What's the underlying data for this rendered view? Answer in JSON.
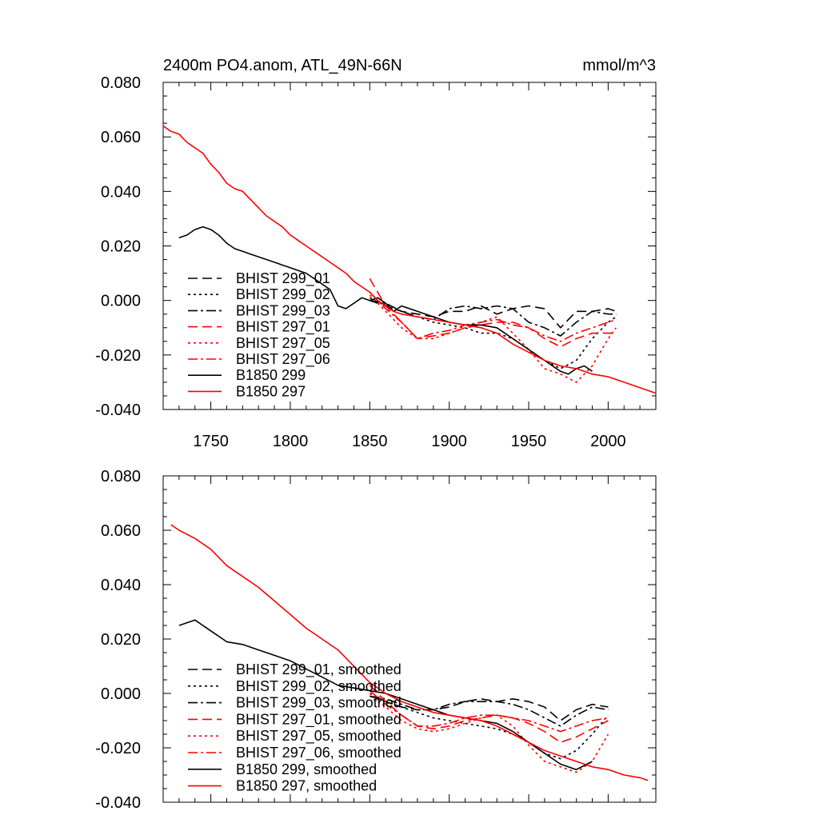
{
  "chart_data": [
    {
      "type": "line",
      "title": "2400m PO4.anom, ATL_49N-66N",
      "units": "mmol/m^3",
      "xlim": [
        1720,
        2030
      ],
      "ylim": [
        -0.04,
        0.08
      ],
      "yticks": [
        "0.080",
        "0.060",
        "0.040",
        "0.020",
        "0.000",
        "-0.020",
        "-0.040"
      ],
      "xticks": [
        "1750",
        "1800",
        "1850",
        "1900",
        "1950",
        "2000"
      ],
      "legend_position": "lower-left",
      "series": [
        {
          "name": "BHIST 299_01",
          "color": "#000000",
          "dash": "dash",
          "x": [
            1850,
            1860,
            1870,
            1880,
            1890,
            1900,
            1910,
            1920,
            1930,
            1940,
            1950,
            1960,
            1970,
            1980,
            1990,
            2000,
            2005
          ],
          "y": [
            0.0,
            -0.002,
            -0.004,
            -0.005,
            -0.006,
            -0.004,
            -0.004,
            -0.002,
            -0.005,
            -0.003,
            -0.002,
            -0.003,
            -0.01,
            -0.004,
            -0.004,
            -0.003,
            -0.004
          ]
        },
        {
          "name": "BHIST 299_02",
          "color": "#000000",
          "dash": "dot",
          "x": [
            1850,
            1860,
            1870,
            1880,
            1890,
            1900,
            1910,
            1920,
            1930,
            1940,
            1950,
            1960,
            1970,
            1980,
            1990,
            2000,
            2005
          ],
          "y": [
            0.001,
            -0.002,
            -0.004,
            -0.006,
            -0.008,
            -0.009,
            -0.01,
            -0.012,
            -0.012,
            -0.014,
            -0.018,
            -0.022,
            -0.025,
            -0.022,
            -0.014,
            -0.008,
            -0.006
          ]
        },
        {
          "name": "BHIST 299_03",
          "color": "#000000",
          "dash": "dashdot",
          "x": [
            1850,
            1860,
            1870,
            1880,
            1890,
            1900,
            1910,
            1920,
            1930,
            1940,
            1950,
            1960,
            1970,
            1980,
            1990,
            2000,
            2005
          ],
          "y": [
            0.0,
            -0.001,
            -0.004,
            -0.006,
            -0.007,
            -0.003,
            -0.002,
            -0.003,
            -0.002,
            -0.003,
            -0.008,
            -0.01,
            -0.013,
            -0.008,
            -0.004,
            -0.005,
            -0.005
          ]
        },
        {
          "name": "BHIST 297_01",
          "color": "#ff0000",
          "dash": "dash",
          "x": [
            1850,
            1860,
            1870,
            1880,
            1890,
            1900,
            1910,
            1920,
            1930,
            1940,
            1950,
            1960,
            1970,
            1980,
            1990,
            2000,
            2005
          ],
          "y": [
            0.008,
            -0.002,
            -0.008,
            -0.014,
            -0.013,
            -0.012,
            -0.01,
            -0.009,
            -0.008,
            -0.008,
            -0.01,
            -0.014,
            -0.017,
            -0.014,
            -0.012,
            -0.012,
            -0.012
          ]
        },
        {
          "name": "BHIST 297_05",
          "color": "#ff0000",
          "dash": "dot",
          "x": [
            1850,
            1860,
            1870,
            1880,
            1890,
            1900,
            1910,
            1920,
            1930,
            1940,
            1950,
            1960,
            1970,
            1980,
            1990,
            2000,
            2005
          ],
          "y": [
            0.002,
            -0.004,
            -0.01,
            -0.014,
            -0.014,
            -0.012,
            -0.01,
            -0.008,
            -0.006,
            -0.012,
            -0.018,
            -0.025,
            -0.027,
            -0.03,
            -0.024,
            -0.014,
            -0.01
          ]
        },
        {
          "name": "BHIST 297_06",
          "color": "#ff0000",
          "dash": "dashdot",
          "x": [
            1850,
            1860,
            1870,
            1880,
            1890,
            1900,
            1910,
            1920,
            1930,
            1940,
            1950,
            1960,
            1970,
            1980,
            1990,
            2000,
            2005
          ],
          "y": [
            0.003,
            -0.003,
            -0.008,
            -0.014,
            -0.012,
            -0.011,
            -0.009,
            -0.008,
            -0.007,
            -0.009,
            -0.01,
            -0.013,
            -0.015,
            -0.012,
            -0.01,
            -0.008,
            -0.007
          ]
        },
        {
          "name": "B1850 299",
          "color": "#000000",
          "dash": "solid",
          "x": [
            1730,
            1735,
            1740,
            1745,
            1750,
            1755,
            1760,
            1765,
            1770,
            1775,
            1780,
            1785,
            1790,
            1795,
            1800,
            1805,
            1810,
            1815,
            1820,
            1825,
            1830,
            1835,
            1840,
            1845,
            1850,
            1855,
            1860,
            1865,
            1870,
            1880,
            1890,
            1900,
            1910,
            1920,
            1930,
            1940,
            1950,
            1960,
            1970,
            1975,
            1980,
            1985,
            1990
          ],
          "y": [
            0.023,
            0.024,
            0.026,
            0.027,
            0.026,
            0.024,
            0.021,
            0.019,
            0.018,
            0.017,
            0.016,
            0.015,
            0.014,
            0.013,
            0.012,
            0.011,
            0.01,
            0.008,
            0.006,
            0.004,
            -0.002,
            -0.003,
            -0.001,
            0.001,
            0.0,
            0.001,
            -0.001,
            -0.004,
            -0.002,
            -0.004,
            -0.006,
            -0.008,
            -0.009,
            -0.009,
            -0.01,
            -0.014,
            -0.018,
            -0.022,
            -0.026,
            -0.027,
            -0.025,
            -0.024,
            -0.026
          ]
        },
        {
          "name": "B1850 297",
          "color": "#ff0000",
          "dash": "solid",
          "x": [
            1720,
            1725,
            1730,
            1735,
            1740,
            1745,
            1750,
            1755,
            1760,
            1765,
            1770,
            1775,
            1780,
            1785,
            1790,
            1795,
            1800,
            1805,
            1810,
            1815,
            1820,
            1825,
            1830,
            1835,
            1840,
            1845,
            1850,
            1855,
            1860,
            1865,
            1870,
            1880,
            1890,
            1900,
            1910,
            1920,
            1930,
            1940,
            1950,
            1960,
            1970,
            1980,
            1990,
            2000,
            2010,
            2020,
            2030
          ],
          "y": [
            0.064,
            0.062,
            0.061,
            0.058,
            0.056,
            0.054,
            0.05,
            0.047,
            0.043,
            0.041,
            0.04,
            0.037,
            0.034,
            0.031,
            0.029,
            0.027,
            0.024,
            0.022,
            0.02,
            0.018,
            0.016,
            0.014,
            0.012,
            0.01,
            0.007,
            0.005,
            0.003,
            0.0,
            -0.002,
            -0.004,
            -0.005,
            -0.006,
            -0.007,
            -0.008,
            -0.009,
            -0.01,
            -0.012,
            -0.016,
            -0.019,
            -0.022,
            -0.024,
            -0.025,
            -0.027,
            -0.028,
            -0.03,
            -0.032,
            -0.034
          ]
        }
      ]
    },
    {
      "type": "line",
      "xlim": [
        1720,
        2030
      ],
      "ylim": [
        -0.04,
        0.08
      ],
      "yticks": [
        "0.080",
        "0.060",
        "0.040",
        "0.020",
        "0.000",
        "-0.020",
        "-0.040"
      ],
      "legend_position": "lower-left",
      "series": [
        {
          "name": "BHIST 299_01, smoothed",
          "color": "#000000",
          "dash": "dash",
          "x": [
            1850,
            1860,
            1870,
            1880,
            1890,
            1900,
            1910,
            1920,
            1930,
            1940,
            1950,
            1960,
            1970,
            1980,
            1990,
            2000
          ],
          "y": [
            -0.001,
            -0.003,
            -0.005,
            -0.006,
            -0.006,
            -0.005,
            -0.003,
            -0.002,
            -0.003,
            -0.002,
            -0.003,
            -0.005,
            -0.01,
            -0.006,
            -0.004,
            -0.005
          ]
        },
        {
          "name": "BHIST 299_02, smoothed",
          "color": "#000000",
          "dash": "dot",
          "x": [
            1850,
            1860,
            1870,
            1880,
            1890,
            1900,
            1910,
            1920,
            1930,
            1940,
            1950,
            1960,
            1970,
            1980,
            1990,
            2000
          ],
          "y": [
            0.0,
            -0.003,
            -0.005,
            -0.007,
            -0.009,
            -0.01,
            -0.011,
            -0.012,
            -0.013,
            -0.015,
            -0.018,
            -0.022,
            -0.024,
            -0.021,
            -0.015,
            -0.008
          ]
        },
        {
          "name": "BHIST 299_03, smoothed",
          "color": "#000000",
          "dash": "dashdot",
          "x": [
            1850,
            1860,
            1870,
            1880,
            1890,
            1900,
            1910,
            1920,
            1930,
            1940,
            1950,
            1960,
            1970,
            1980,
            1990,
            2000
          ],
          "y": [
            -0.001,
            -0.002,
            -0.004,
            -0.006,
            -0.006,
            -0.004,
            -0.003,
            -0.003,
            -0.003,
            -0.004,
            -0.006,
            -0.009,
            -0.012,
            -0.008,
            -0.005,
            -0.006
          ]
        },
        {
          "name": "BHIST 297_01, smoothed",
          "color": "#ff0000",
          "dash": "dash",
          "x": [
            1850,
            1860,
            1870,
            1880,
            1890,
            1900,
            1910,
            1920,
            1930,
            1940,
            1950,
            1960,
            1970,
            1980,
            1990,
            2000
          ],
          "y": [
            0.003,
            -0.003,
            -0.008,
            -0.012,
            -0.013,
            -0.012,
            -0.01,
            -0.009,
            -0.008,
            -0.009,
            -0.011,
            -0.014,
            -0.018,
            -0.016,
            -0.013,
            -0.01
          ]
        },
        {
          "name": "BHIST 297_05, smoothed",
          "color": "#ff0000",
          "dash": "dot",
          "x": [
            1850,
            1860,
            1870,
            1880,
            1890,
            1900,
            1910,
            1920,
            1930,
            1940,
            1950,
            1960,
            1970,
            1980,
            1990,
            2000
          ],
          "y": [
            0.0,
            -0.005,
            -0.01,
            -0.013,
            -0.014,
            -0.013,
            -0.011,
            -0.009,
            -0.008,
            -0.012,
            -0.019,
            -0.025,
            -0.027,
            -0.029,
            -0.025,
            -0.015
          ]
        },
        {
          "name": "BHIST 297_06, smoothed",
          "color": "#ff0000",
          "dash": "dashdot",
          "x": [
            1850,
            1860,
            1870,
            1880,
            1890,
            1900,
            1910,
            1920,
            1930,
            1940,
            1950,
            1960,
            1970,
            1980,
            1990,
            2000
          ],
          "y": [
            0.001,
            -0.004,
            -0.008,
            -0.012,
            -0.012,
            -0.011,
            -0.009,
            -0.008,
            -0.008,
            -0.009,
            -0.01,
            -0.012,
            -0.014,
            -0.012,
            -0.01,
            -0.009
          ]
        },
        {
          "name": "B1850 299, smoothed",
          "color": "#000000",
          "dash": "solid",
          "x": [
            1730,
            1740,
            1750,
            1760,
            1770,
            1780,
            1790,
            1800,
            1810,
            1820,
            1830,
            1840,
            1850,
            1860,
            1870,
            1880,
            1890,
            1900,
            1910,
            1920,
            1930,
            1940,
            1950,
            1960,
            1970,
            1980,
            1990
          ],
          "y": [
            0.025,
            0.027,
            0.023,
            0.019,
            0.018,
            0.016,
            0.014,
            0.012,
            0.009,
            0.006,
            0.003,
            0.002,
            0.001,
            0.0,
            -0.002,
            -0.004,
            -0.006,
            -0.008,
            -0.009,
            -0.01,
            -0.011,
            -0.014,
            -0.018,
            -0.022,
            -0.026,
            -0.028,
            -0.025
          ]
        },
        {
          "name": "B1850 297, smoothed",
          "color": "#ff0000",
          "dash": "solid",
          "x": [
            1725,
            1730,
            1740,
            1750,
            1760,
            1770,
            1780,
            1790,
            1800,
            1810,
            1820,
            1830,
            1840,
            1850,
            1860,
            1870,
            1880,
            1890,
            1900,
            1910,
            1920,
            1930,
            1940,
            1950,
            1960,
            1970,
            1980,
            1990,
            2000,
            2010,
            2020,
            2025
          ],
          "y": [
            0.062,
            0.06,
            0.057,
            0.053,
            0.047,
            0.043,
            0.039,
            0.034,
            0.029,
            0.024,
            0.02,
            0.016,
            0.01,
            0.004,
            0.0,
            -0.003,
            -0.005,
            -0.007,
            -0.008,
            -0.009,
            -0.01,
            -0.012,
            -0.015,
            -0.018,
            -0.021,
            -0.023,
            -0.025,
            -0.027,
            -0.028,
            -0.03,
            -0.031,
            -0.032
          ]
        }
      ]
    }
  ]
}
